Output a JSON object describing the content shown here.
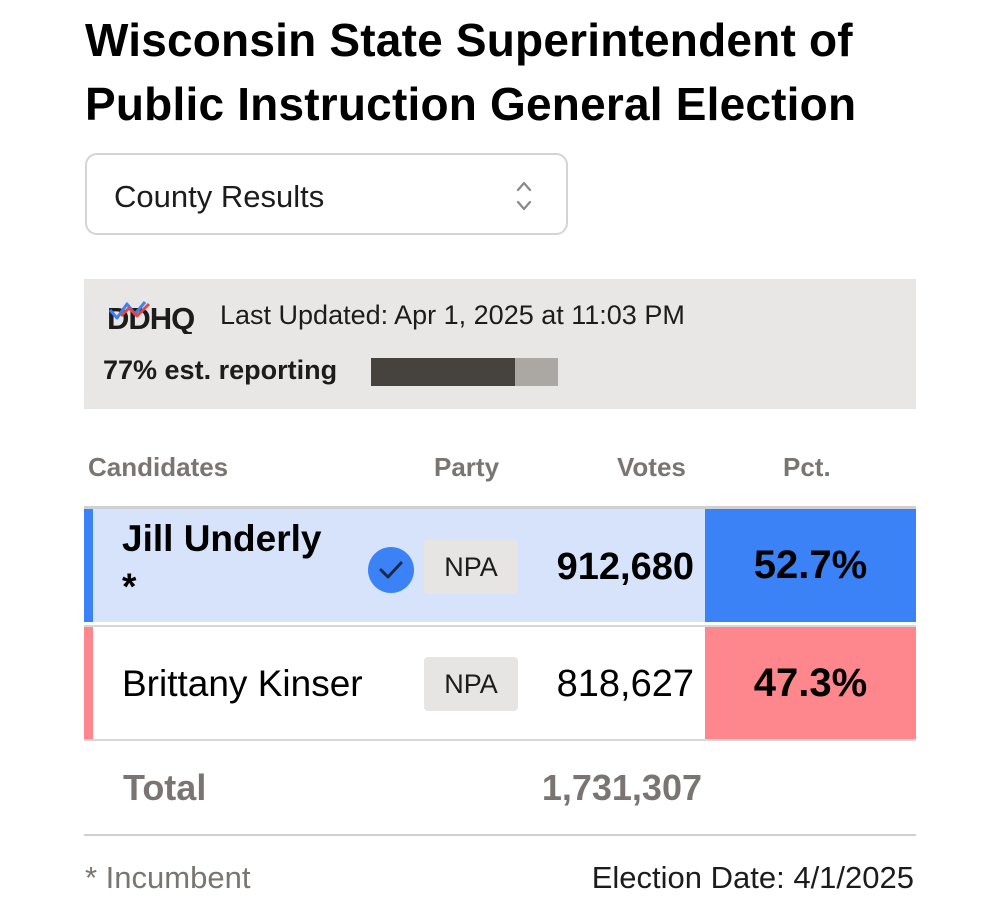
{
  "title": "Wisconsin State Superintendent of Public Instruction General Election",
  "view_select": {
    "selected": "County Results"
  },
  "status": {
    "logo_text": "DDHQ",
    "last_updated": "Last Updated: Apr 1, 2025 at 11:03 PM",
    "reporting_label": "77% est. reporting",
    "reporting_fraction": 0.77
  },
  "table": {
    "headers": {
      "candidates": "Candidates",
      "party": "Party",
      "votes": "Votes",
      "pct": "Pct."
    },
    "rows": [
      {
        "name": "Jill Underly",
        "incumbent_mark": "*",
        "winner": true,
        "party": "NPA",
        "votes": "912,680",
        "pct": "52.7%",
        "color": "#3b82f6",
        "stripe": "#3b82f6"
      },
      {
        "name": "Brittany Kinser",
        "incumbent_mark": "",
        "winner": false,
        "party": "NPA",
        "votes": "818,627",
        "pct": "47.3%",
        "color": "#fd878c",
        "stripe": "#fd878c"
      }
    ],
    "total_label": "Total",
    "total_votes": "1,731,307"
  },
  "footer": {
    "incumbent_note": "* Incumbent",
    "election_date": "Election Date: 4/1/2025"
  },
  "icons": {
    "winner": "check-circle-icon",
    "select": "chevron-up-down-icon"
  }
}
